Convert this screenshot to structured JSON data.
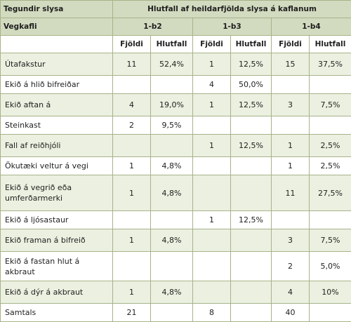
{
  "table": {
    "header_left_1": "Tegundir slysa",
    "header_span_1": "Hlutfall af heildarfjölda slysa á kaflanum",
    "header_left_2": "Vegkafli",
    "sections": [
      "1-b2",
      "1-b3",
      "1-b4"
    ],
    "subheaders": [
      "Fjöldi",
      "Hlutfall",
      "Fjöldi",
      "Hlutfall",
      "Fjöldi",
      "Hlutfall"
    ],
    "rows": [
      {
        "label": "Útafakstur",
        "cells": [
          "11",
          "52,4%",
          "1",
          "12,5%",
          "15",
          "37,5%"
        ]
      },
      {
        "label": "Ekið á hlið bifreiðar",
        "cells": [
          "",
          "",
          "4",
          "50,0%",
          "",
          ""
        ]
      },
      {
        "label": "Ekið aftan á",
        "cells": [
          "4",
          "19,0%",
          "1",
          "12,5%",
          "3",
          "7,5%"
        ]
      },
      {
        "label": "Steinkast",
        "cells": [
          "2",
          "9,5%",
          "",
          "",
          "",
          ""
        ]
      },
      {
        "label": "Fall af reiðhjóli",
        "cells": [
          "",
          "",
          "1",
          "12,5%",
          "1",
          "2,5%"
        ]
      },
      {
        "label": "Ökutæki veltur á vegi",
        "cells": [
          "1",
          "4,8%",
          "",
          "",
          "1",
          "2,5%"
        ]
      },
      {
        "label": "Ekið á vegrið eða umferðarmerki",
        "cells": [
          "1",
          "4,8%",
          "",
          "",
          "11",
          "27,5%"
        ]
      },
      {
        "label": "Ekið á ljósastaur",
        "cells": [
          "",
          "",
          "1",
          "12,5%",
          "",
          ""
        ]
      },
      {
        "label": "Ekið framan á bifreið",
        "cells": [
          "1",
          "4,8%",
          "",
          "",
          "3",
          "7,5%"
        ]
      },
      {
        "label": "Ekið á fastan hlut á akbraut",
        "cells": [
          "",
          "",
          "",
          "",
          "2",
          "5,0%"
        ]
      },
      {
        "label": "Ekið á dýr á akbraut",
        "cells": [
          "1",
          "4,8%",
          "",
          "",
          "4",
          "10%"
        ]
      },
      {
        "label": "Samtals",
        "cells": [
          "21",
          "",
          "8",
          "",
          "40",
          ""
        ]
      }
    ]
  }
}
